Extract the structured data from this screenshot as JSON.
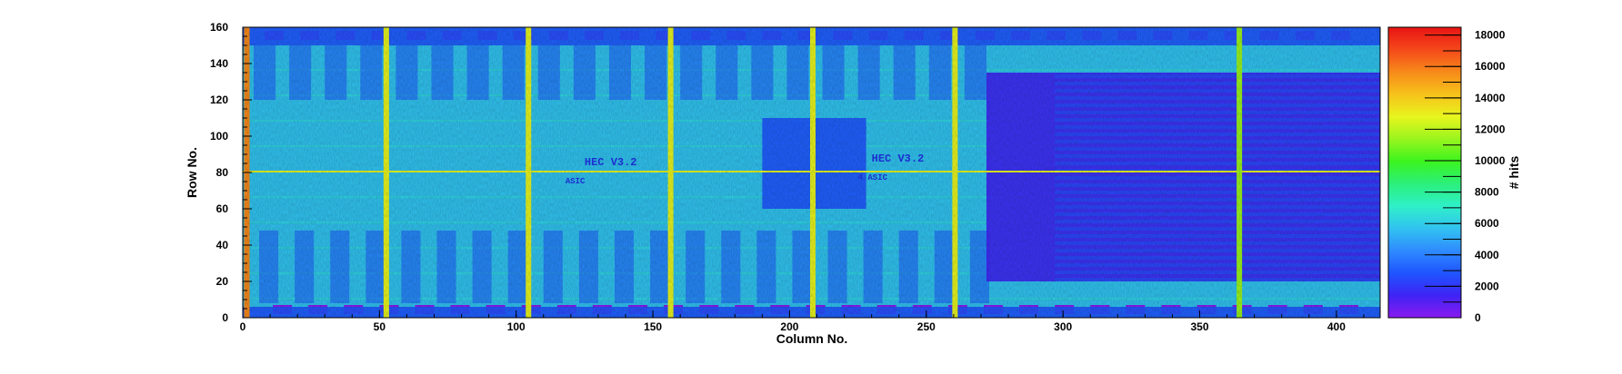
{
  "chart_data": {
    "type": "heatmap",
    "title": "",
    "xlabel": "Column No.",
    "ylabel": "Row No.",
    "zlabel": "# hits",
    "xlim": [
      0,
      416
    ],
    "ylim": [
      0,
      160
    ],
    "zlim": [
      0,
      18500
    ],
    "x_ticks": [
      0,
      50,
      100,
      150,
      200,
      250,
      300,
      350,
      400
    ],
    "y_ticks": [
      0,
      20,
      40,
      60,
      80,
      100,
      120,
      140,
      160
    ],
    "z_ticks": [
      0,
      2000,
      4000,
      6000,
      8000,
      10000,
      12000,
      14000,
      16000,
      18000
    ],
    "colormap": [
      "#8a1bf0",
      "#3f23f5",
      "#1f55ff",
      "#2f8bff",
      "#31c3f0",
      "#2ff0c8",
      "#2bf07a",
      "#3bf41e",
      "#9af51e",
      "#e8f51e",
      "#f7c21a",
      "#f78a1a",
      "#f5481a",
      "#e81414"
    ],
    "background_hits": 6000,
    "hot_columns": [
      {
        "column": 1,
        "hits": 15000
      },
      {
        "column": 52,
        "hits": 13500
      },
      {
        "column": 104,
        "hits": 13500
      },
      {
        "column": 156,
        "hits": 13500
      },
      {
        "column": 208,
        "hits": 13500
      },
      {
        "column": 260,
        "hits": 12500
      },
      {
        "column": 364,
        "hits": 11000
      }
    ],
    "hot_rows": [
      {
        "row": 80,
        "hits": 12500
      }
    ],
    "low_regions": [
      {
        "x": [
          272,
          416
        ],
        "y": [
          20,
          135
        ],
        "hits": 1200
      },
      {
        "x": [
          190,
          228
        ],
        "y": [
          60,
          110
        ],
        "hits": 2500
      },
      {
        "x": [
          0,
          416
        ],
        "y": [
          0,
          6
        ],
        "hits": 3000
      },
      {
        "x": [
          0,
          416
        ],
        "y": [
          150,
          160
        ],
        "hits": 3000
      }
    ],
    "chip_marking_text": [
      "HEC V3.2",
      "ASIC",
      "HEC V3.2",
      "4 ASIC"
    ]
  }
}
